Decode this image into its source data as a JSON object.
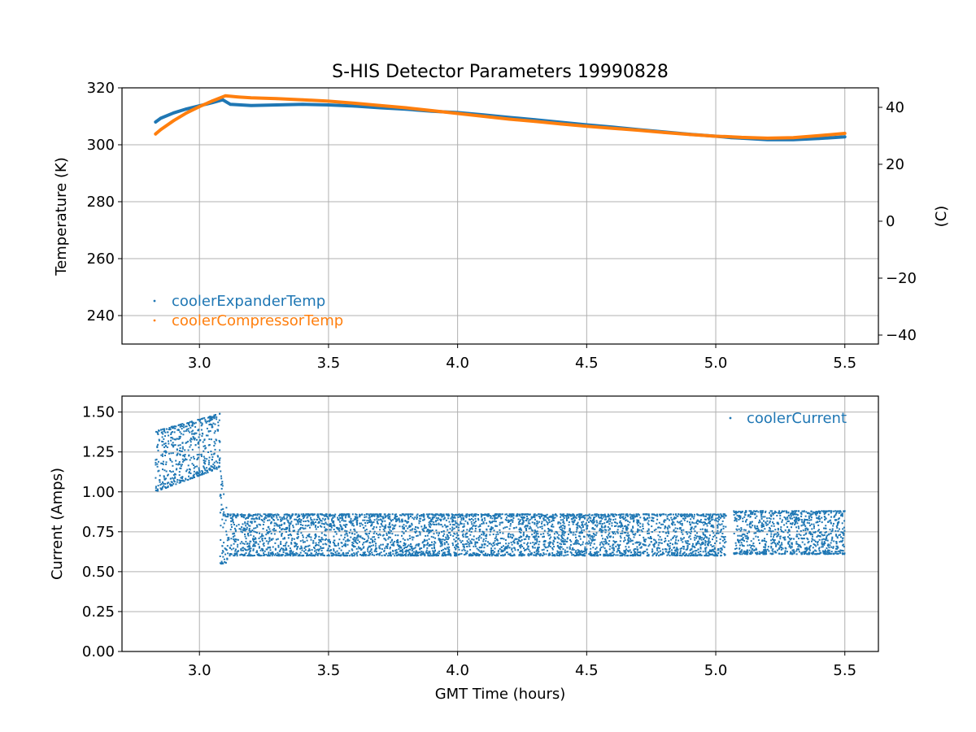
{
  "chart_data": [
    {
      "type": "scatter",
      "title": "S-HIS Detector Parameters 19990828",
      "xlabel": "",
      "ylabel": "Temperature (K)",
      "ylabel_right": "(C)",
      "xlim": [
        2.7,
        5.63
      ],
      "ylim": [
        230,
        320
      ],
      "ylim_right": [
        -43.15,
        46.85
      ],
      "xticks": [
        3.0,
        3.5,
        4.0,
        4.5,
        5.0,
        5.5
      ],
      "xtick_labels": [
        "3.0",
        "3.5",
        "4.0",
        "4.5",
        "5.0",
        "5.5"
      ],
      "yticks": [
        240,
        260,
        280,
        300,
        320
      ],
      "ytick_labels": [
        "240",
        "260",
        "280",
        "300",
        "320"
      ],
      "yticks_right": [
        -40,
        -20,
        0,
        20,
        40
      ],
      "ytick_labels_right": [
        "−40",
        "−20",
        "0",
        "20",
        "40"
      ],
      "grid": true,
      "legend_position": "lower-left",
      "series": [
        {
          "name": "coolerExpanderTemp",
          "color": "#1f77b4",
          "x": [
            2.83,
            2.85,
            2.9,
            2.95,
            3.0,
            3.05,
            3.09,
            3.12,
            3.2,
            3.3,
            3.4,
            3.5,
            3.6,
            3.7,
            3.8,
            3.9,
            4.0,
            4.1,
            4.2,
            4.3,
            4.4,
            4.5,
            4.6,
            4.7,
            4.8,
            4.9,
            5.0,
            5.04,
            5.06,
            5.1,
            5.2,
            5.3,
            5.4,
            5.5
          ],
          "y": [
            308,
            309.3,
            311.2,
            312.6,
            313.7,
            314.8,
            315.8,
            314.2,
            313.8,
            314.0,
            314.2,
            314.0,
            313.6,
            313.0,
            312.5,
            311.8,
            311.3,
            310.5,
            309.6,
            308.8,
            307.9,
            307.0,
            306.2,
            305.3,
            304.5,
            303.7,
            303.0,
            302.7,
            302.5,
            302.3,
            301.8,
            301.8,
            302.2,
            302.8
          ]
        },
        {
          "name": "coolerCompressorTemp",
          "color": "#ff7f0e",
          "x": [
            2.83,
            2.85,
            2.9,
            2.95,
            3.0,
            3.05,
            3.1,
            3.15,
            3.2,
            3.3,
            3.4,
            3.5,
            3.6,
            3.7,
            3.8,
            3.9,
            4.0,
            4.1,
            4.2,
            4.3,
            4.4,
            4.5,
            4.6,
            4.7,
            4.8,
            4.9,
            5.0,
            5.04,
            5.06,
            5.1,
            5.2,
            5.3,
            5.4,
            5.5
          ],
          "y": [
            303.8,
            305.3,
            308.5,
            311.2,
            313.4,
            315.4,
            317.2,
            316.8,
            316.5,
            316.2,
            315.8,
            315.3,
            314.6,
            313.8,
            313.0,
            312.0,
            311.0,
            310.0,
            309.0,
            308.2,
            307.3,
            306.5,
            305.8,
            305.1,
            304.3,
            303.6,
            303.0,
            302.9,
            302.8,
            302.6,
            302.3,
            302.5,
            303.2,
            304.0
          ]
        }
      ]
    },
    {
      "type": "scatter",
      "title": "",
      "xlabel": "GMT Time (hours)",
      "ylabel": "Current (Amps)",
      "xlim": [
        2.7,
        5.63
      ],
      "ylim": [
        0.0,
        1.6
      ],
      "xticks": [
        3.0,
        3.5,
        4.0,
        4.5,
        5.0,
        5.5
      ],
      "xtick_labels": [
        "3.0",
        "3.5",
        "4.0",
        "4.5",
        "5.0",
        "5.5"
      ],
      "yticks": [
        0.0,
        0.25,
        0.5,
        0.75,
        1.0,
        1.25,
        1.5
      ],
      "ytick_labels": [
        "0.00",
        "0.25",
        "0.50",
        "0.75",
        "1.00",
        "1.25",
        "1.50"
      ],
      "grid": true,
      "legend_position": "upper-right",
      "series": [
        {
          "name": "coolerCurrent",
          "color": "#1f77b4",
          "segments": [
            {
              "x_range": [
                2.83,
                3.08
              ],
              "band_lower": [
                1.0,
                1.15
              ],
              "band_upper": [
                1.38,
                1.49
              ]
            },
            {
              "x_range": [
                3.08,
                3.11
              ],
              "band_lower": [
                0.55,
                0.55
              ],
              "band_upper": [
                1.15,
                0.85
              ]
            },
            {
              "x_range": [
                3.11,
                5.04
              ],
              "band_lower": [
                0.6,
                0.6
              ],
              "band_upper": [
                0.86,
                0.86
              ]
            },
            {
              "x_range": [
                5.07,
                5.5
              ],
              "band_lower": [
                0.61,
                0.61
              ],
              "band_upper": [
                0.88,
                0.88
              ]
            }
          ]
        }
      ]
    }
  ]
}
